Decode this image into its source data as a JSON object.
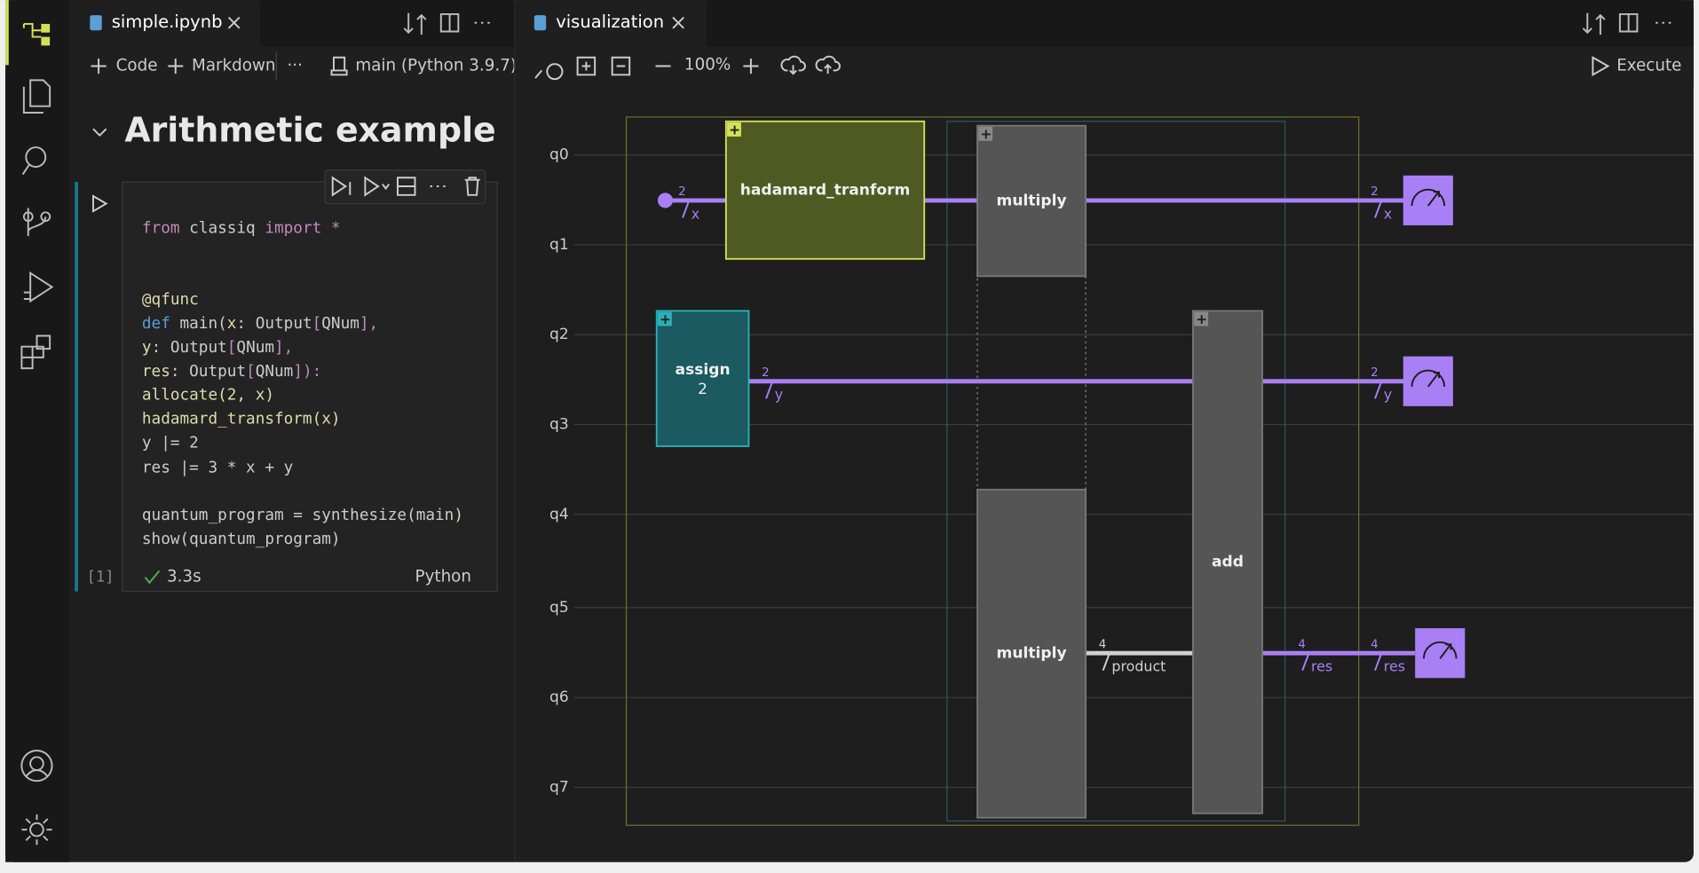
{
  "left_tab": {
    "title": "simple.ipynb"
  },
  "left_toolbar": {
    "code": "Code",
    "markdown": "Markdown",
    "more": "···",
    "kernel": "main (Python 3.9.7)"
  },
  "notebook": {
    "heading": "Arithmetic example",
    "cell": {
      "lines": [
        [
          {
            "text": "from",
            "color": "#c586c0"
          },
          {
            "text": " classiq ",
            "color": "#cccccc"
          },
          {
            "text": "import",
            "color": "#c586c0"
          },
          {
            "text": " *",
            "color": "#c586c0"
          }
        ],
        [
          {
            "text": "@qfunc",
            "color": "#dcdcaa"
          }
        ],
        [
          {
            "text": "def",
            "color": "#569cd6"
          },
          {
            "text": " main(",
            "color": "#cccccc"
          },
          {
            "text": "x",
            "color": "#dcdcaa"
          },
          {
            "text": ": Output",
            "color": "#cccccc"
          },
          {
            "text": "[",
            "color": "#c586c0"
          },
          {
            "text": "QNum",
            "color": "#cccccc"
          },
          {
            "text": "],",
            "color": "#c586c0"
          }
        ],
        [
          {
            "text": "         y",
            "color": "#dcdcaa"
          },
          {
            "text": ": Output",
            "color": "#cccccc"
          },
          {
            "text": "[",
            "color": "#c586c0"
          },
          {
            "text": "QNum",
            "color": "#cccccc"
          },
          {
            "text": "],",
            "color": "#c586c0"
          }
        ],
        [
          {
            "text": "         res",
            "color": "#dcdcaa"
          },
          {
            "text": ": Output",
            "color": "#cccccc"
          },
          {
            "text": "[",
            "color": "#c586c0"
          },
          {
            "text": "QNum",
            "color": "#cccccc"
          },
          {
            "text": "]):",
            "color": "#c586c0"
          }
        ],
        [
          {
            "text": "    allocate(2, x",
            "color": "#dcdcaa"
          },
          {
            "text": ")",
            "color": "#dcdcaa"
          }
        ],
        [
          {
            "text": "    hadamard_transform(x)",
            "color": "#dcdcaa"
          }
        ],
        [
          {
            "text": "    y |= 2",
            "color": "#cccccc"
          }
        ],
        [
          {
            "text": "    res |= 3 * x + y",
            "color": "#cccccc"
          }
        ],
        [
          {
            "text": "quantum_program = synthesize(",
            "color": "#cccccc"
          },
          {
            "text": "main",
            "color": "#cccccc"
          },
          {
            "text": ")",
            "color": "#dcdcaa"
          }
        ],
        [
          {
            "text": "show(quantum_program)",
            "color": "#cccccc"
          }
        ]
      ],
      "execution_count": "[1]",
      "time": "3.3s",
      "language": "Python"
    }
  },
  "right_tab": {
    "title": "visualization"
  },
  "right_toolbar": {
    "zoom": "100%",
    "execute": "Execute"
  },
  "circuit": {
    "qubits": [
      "q0",
      "q1",
      "q2",
      "q3",
      "q4",
      "q5",
      "q6",
      "q7"
    ],
    "blocks": [
      {
        "label": "hadamard_tranform"
      },
      {
        "label": "multiply"
      },
      {
        "label": "multiply"
      },
      {
        "label": "assign",
        "sub": "2"
      },
      {
        "label": "add"
      }
    ],
    "wire_labels": [
      {
        "size": "2",
        "name": "x"
      },
      {
        "size": "2",
        "name": "y"
      },
      {
        "size": "4",
        "name": "product"
      },
      {
        "size": "4",
        "name": "res"
      },
      {
        "size": "2",
        "name": "x"
      },
      {
        "size": "2",
        "name": "y"
      },
      {
        "size": "4",
        "name": "res"
      }
    ]
  }
}
